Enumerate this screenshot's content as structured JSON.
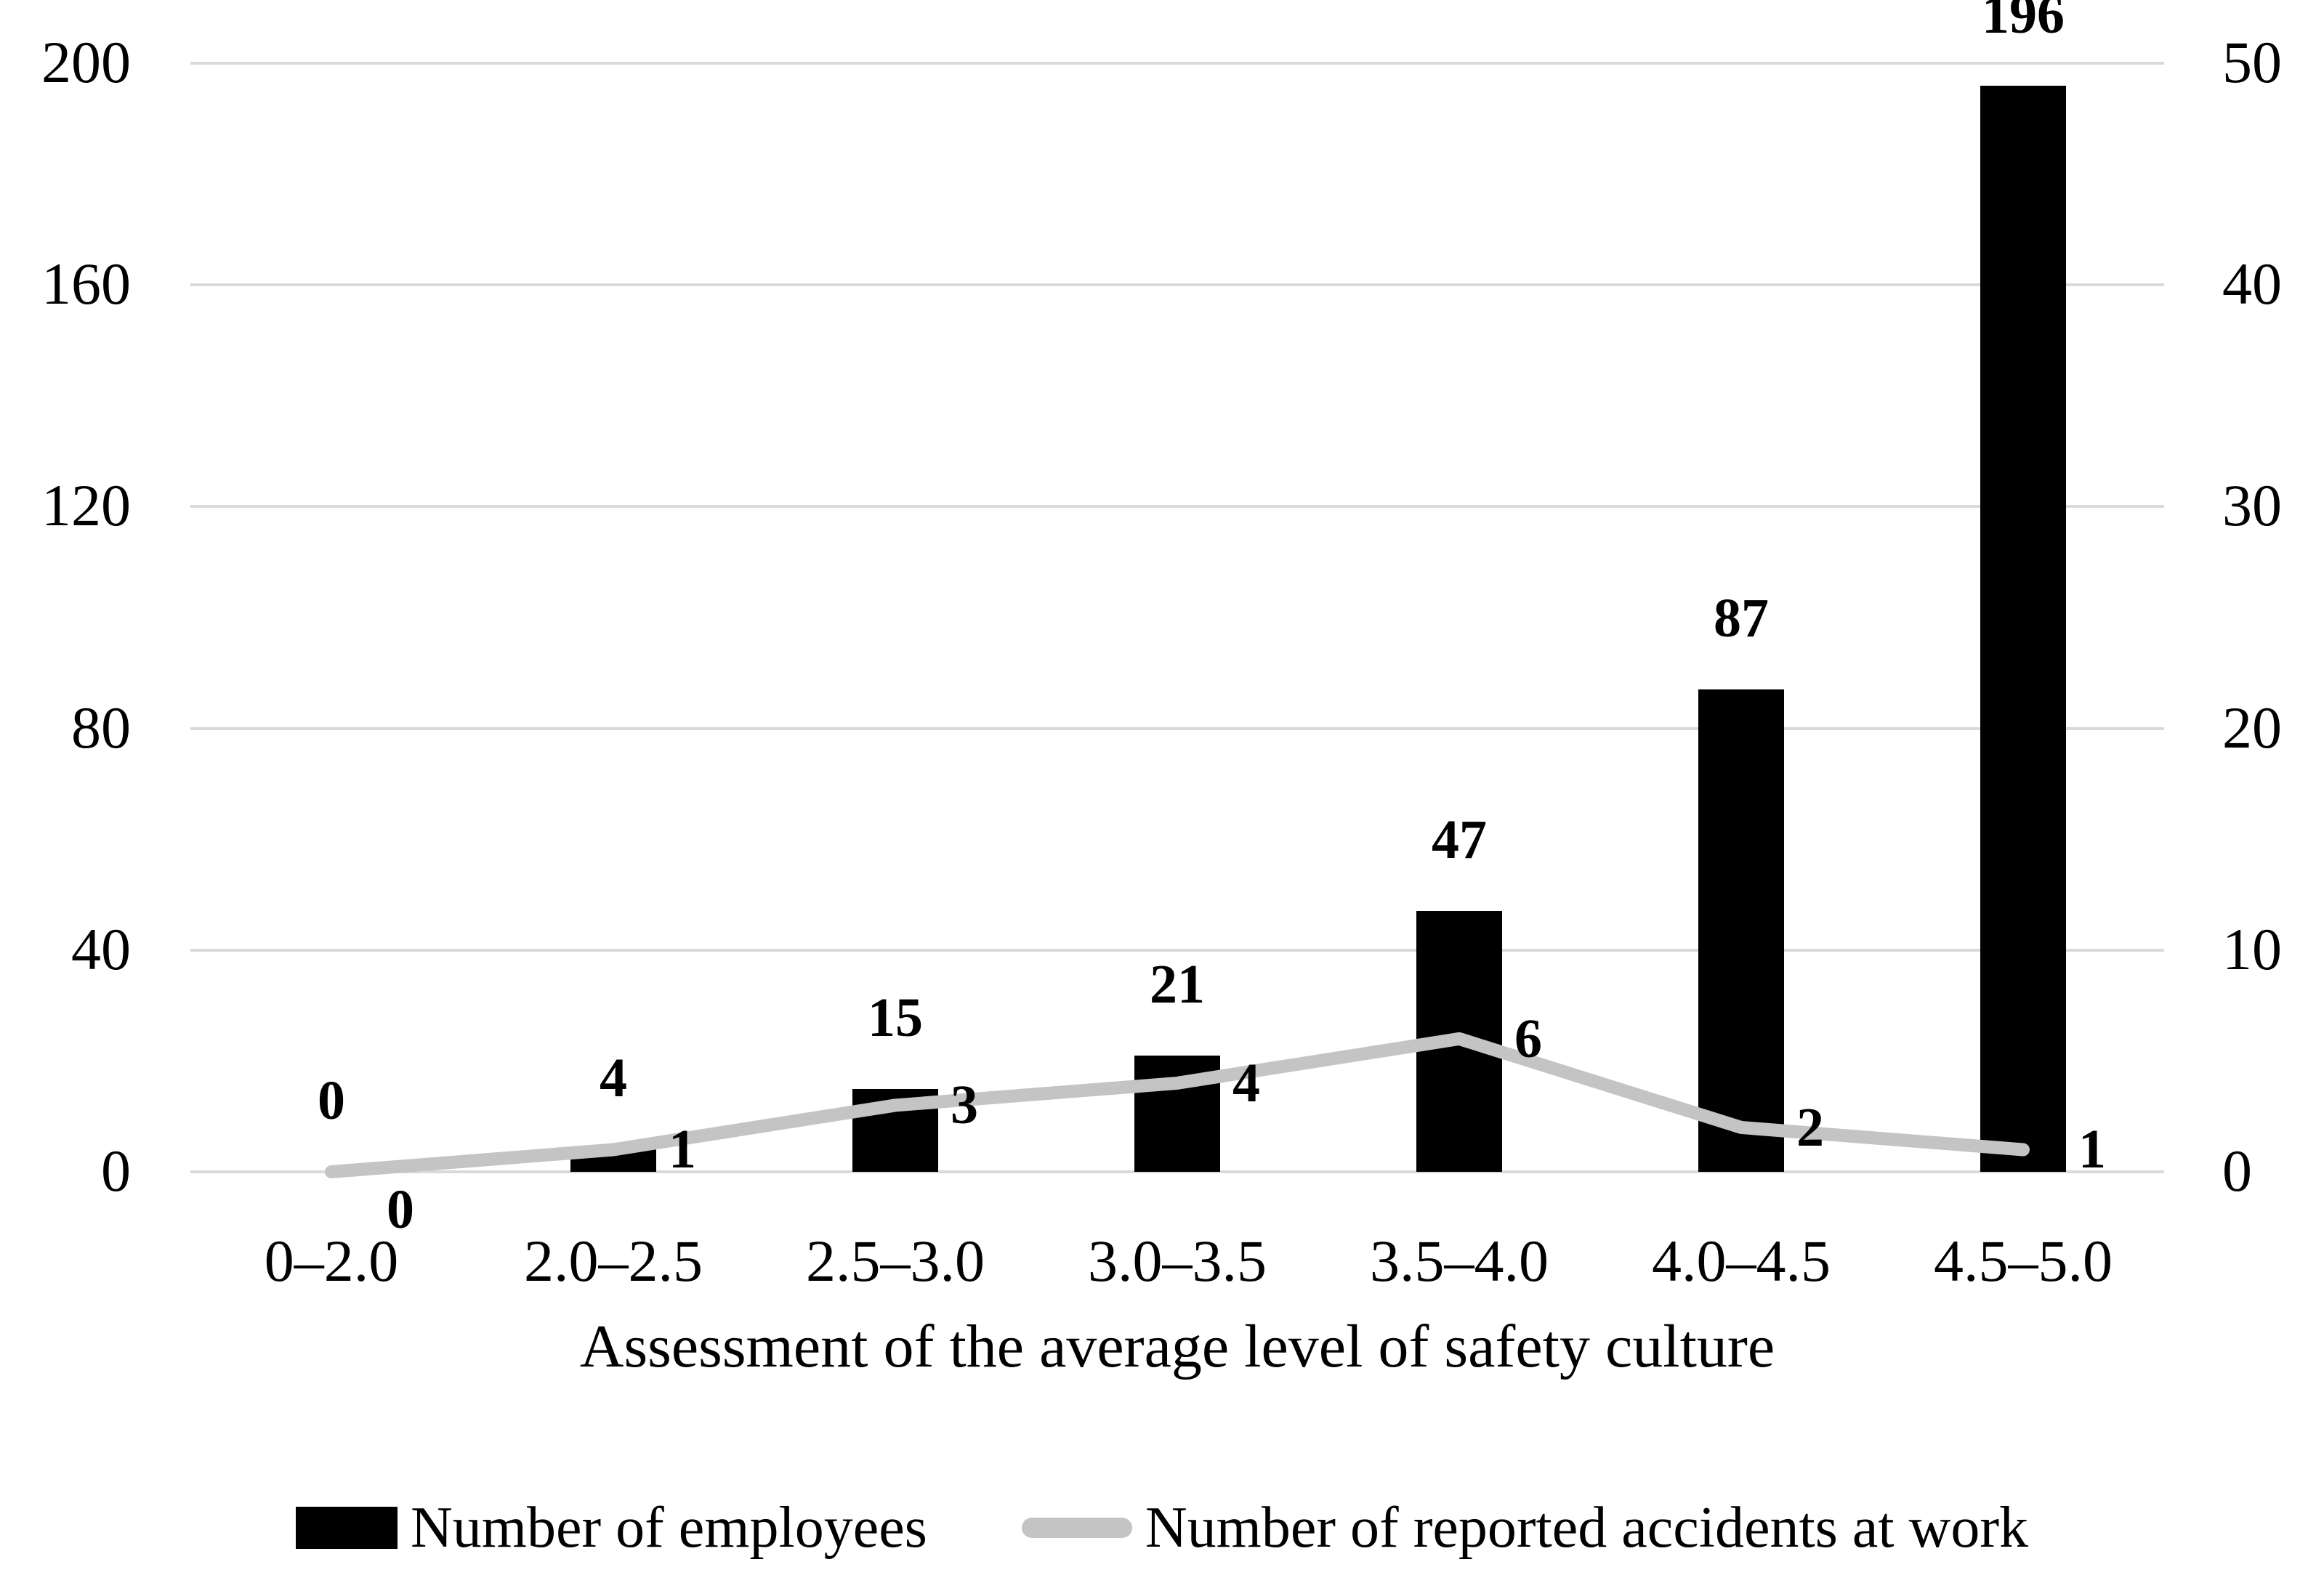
{
  "chart_data": {
    "type": "bar",
    "subtype": "bar-line-combo",
    "categories": [
      "0–2.0",
      "2.0–2.5",
      "2.5–3.0",
      "3.0–3.5",
      "3.5–4.0",
      "4.0–4.5",
      "4.5–5.0"
    ],
    "series": [
      {
        "name": "Number of employees",
        "type": "bar",
        "axis": "left",
        "color": "#000000",
        "values": [
          0,
          4,
          15,
          21,
          47,
          87,
          196
        ]
      },
      {
        "name": "Number of reported accidents at work",
        "type": "line",
        "axis": "right",
        "color": "#c4c4c4",
        "values": [
          0,
          1,
          3,
          4,
          6,
          2,
          1
        ]
      }
    ],
    "title": "",
    "xlabel": "Assessment of the average level of safety culture",
    "ylabel": "",
    "left_axis": {
      "ticks": [
        0,
        40,
        80,
        120,
        160,
        200
      ],
      "range": [
        0,
        200
      ]
    },
    "right_axis": {
      "ticks": [
        0,
        10,
        20,
        30,
        40,
        50
      ],
      "range": [
        0,
        50
      ]
    },
    "grid": true,
    "gridline_color": "#d9d9d9",
    "legend_position": "bottom",
    "background": "#ffffff",
    "text_color": "#000000"
  }
}
